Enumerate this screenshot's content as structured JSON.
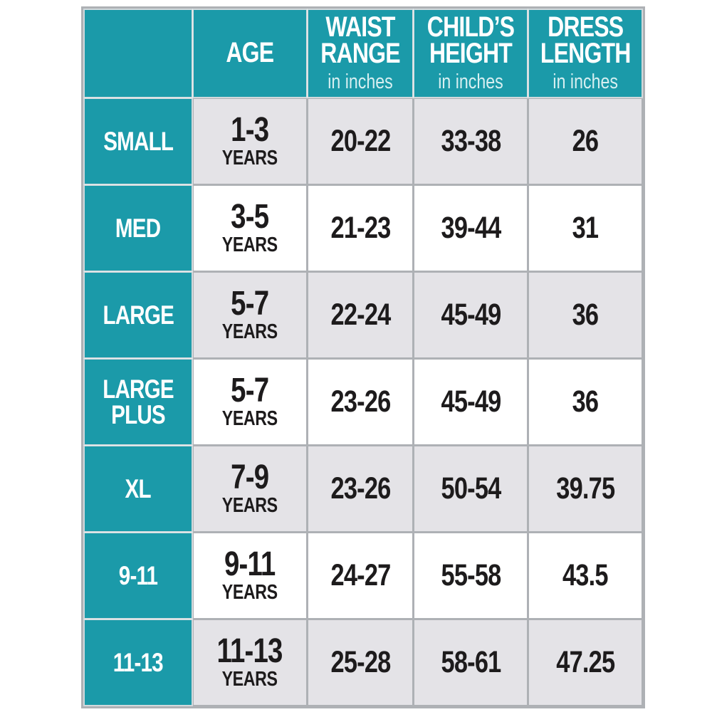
{
  "colors": {
    "teal": "#1b9aa9",
    "row_alt_gray": "#e4e3e7",
    "row_white": "#ffffff",
    "grid_gray": "#aeb1b5",
    "text_dark": "#1d1b1c",
    "header_text": "#ffffff",
    "header_subtext": "#d7eff1"
  },
  "table": {
    "columns": [
      {
        "label": "",
        "sub": ""
      },
      {
        "label": "AGE",
        "sub": ""
      },
      {
        "label": "WAIST RANGE",
        "sub": "in inches"
      },
      {
        "label": "CHILD’S HEIGHT",
        "sub": "in inches"
      },
      {
        "label": "DRESS LENGTH",
        "sub": "in inches"
      }
    ],
    "rows": [
      {
        "size": "SMALL",
        "age": "1-3",
        "age_unit": "YEARS",
        "waist_range": "20-22",
        "child_height": "33-38",
        "dress_length": "26"
      },
      {
        "size": "MED",
        "age": "3-5",
        "age_unit": "YEARS",
        "waist_range": "21-23",
        "child_height": "39-44",
        "dress_length": "31"
      },
      {
        "size": "LARGE",
        "age": "5-7",
        "age_unit": "YEARS",
        "waist_range": "22-24",
        "child_height": "45-49",
        "dress_length": "36"
      },
      {
        "size": "LARGE PLUS",
        "age": "5-7",
        "age_unit": "YEARS",
        "waist_range": "23-26",
        "child_height": "45-49",
        "dress_length": "36"
      },
      {
        "size": "XL",
        "age": "7-9",
        "age_unit": "YEARS",
        "waist_range": "23-26",
        "child_height": "50-54",
        "dress_length": "39.75"
      },
      {
        "size": "9-11",
        "age": "9-11",
        "age_unit": "YEARS",
        "waist_range": "24-27",
        "child_height": "55-58",
        "dress_length": "43.5"
      },
      {
        "size": "11-13",
        "age": "11-13",
        "age_unit": "YEARS",
        "waist_range": "25-28",
        "child_height": "58-61",
        "dress_length": "47.25"
      }
    ]
  },
  "chart_data": {
    "type": "table",
    "units": "inches",
    "columns": [
      "",
      "AGE",
      "WAIST RANGE in inches",
      "CHILD'S HEIGHT in inches",
      "DRESS LENGTH in inches"
    ],
    "rows": [
      [
        "SMALL",
        "1-3 YEARS",
        "20-22",
        "33-38",
        "26"
      ],
      [
        "MED",
        "3-5 YEARS",
        "21-23",
        "39-44",
        "31"
      ],
      [
        "LARGE",
        "5-7 YEARS",
        "22-24",
        "45-49",
        "36"
      ],
      [
        "LARGE PLUS",
        "5-7 YEARS",
        "23-26",
        "45-49",
        "36"
      ],
      [
        "XL",
        "7-9 YEARS",
        "23-26",
        "50-54",
        "39.75"
      ],
      [
        "9-11",
        "9-11 YEARS",
        "24-27",
        "55-58",
        "43.5"
      ],
      [
        "11-13",
        "11-13 YEARS",
        "25-28",
        "58-61",
        "47.25"
      ]
    ]
  }
}
